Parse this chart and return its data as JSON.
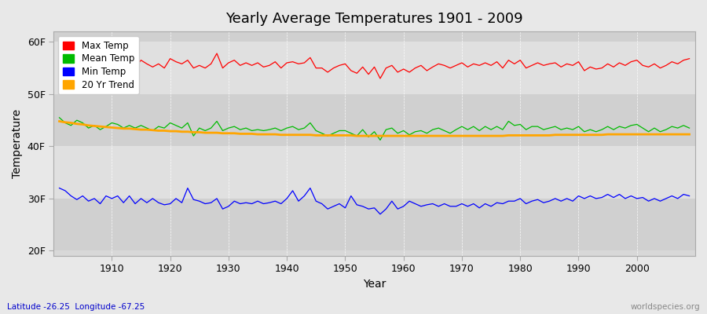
{
  "title": "Yearly Average Temperatures 1901 - 2009",
  "xlabel": "Year",
  "ylabel": "Temperature",
  "years_start": 1901,
  "years_end": 2009,
  "yticks": [
    20,
    30,
    40,
    50,
    60
  ],
  "ytick_labels": [
    "20F",
    "30F",
    "40F",
    "50F",
    "60F"
  ],
  "ylim": [
    19,
    62
  ],
  "xlim": [
    1900,
    2010
  ],
  "legend_labels": [
    "Max Temp",
    "Mean Temp",
    "Min Temp",
    "20 Yr Trend"
  ],
  "legend_colors": [
    "#ff0000",
    "#00bb00",
    "#0000ff",
    "#ffa500"
  ],
  "bg_color": "#e8e8e8",
  "plot_bg_color": "#d8d8d8",
  "grid_color": "#ffffff",
  "subtitle_text": "Latitude -26.25  Longitude -67.25",
  "watermark": "worldspecies.org",
  "max_temps": [
    58.5,
    57.0,
    56.8,
    57.8,
    57.2,
    56.5,
    57.0,
    55.8,
    56.5,
    57.2,
    56.8,
    55.5,
    56.0,
    55.2,
    56.5,
    55.8,
    55.2,
    55.8,
    55.0,
    56.8,
    56.2,
    55.8,
    56.5,
    55.0,
    55.5,
    55.0,
    55.8,
    57.8,
    55.0,
    56.0,
    56.5,
    55.5,
    56.0,
    55.5,
    56.0,
    55.2,
    55.5,
    56.2,
    55.0,
    56.0,
    56.2,
    55.8,
    56.0,
    57.0,
    55.0,
    55.0,
    54.2,
    55.0,
    55.5,
    55.8,
    54.5,
    54.0,
    55.2,
    53.8,
    55.2,
    53.0,
    55.0,
    55.5,
    54.2,
    54.8,
    54.2,
    55.0,
    55.5,
    54.5,
    55.2,
    55.8,
    55.5,
    55.0,
    55.5,
    56.0,
    55.2,
    55.8,
    55.5,
    56.0,
    55.5,
    56.2,
    55.0,
    56.5,
    55.8,
    56.5,
    55.0,
    55.5,
    56.0,
    55.5,
    55.8,
    56.0,
    55.2,
    55.8,
    55.5,
    56.2,
    54.5,
    55.2,
    54.8,
    55.0,
    55.8,
    55.2,
    56.0,
    55.5,
    56.2,
    56.5,
    55.5,
    55.2,
    55.8,
    55.0,
    55.5,
    56.2,
    55.8,
    56.5,
    56.8
  ],
  "mean_temps": [
    45.5,
    44.5,
    44.0,
    45.0,
    44.5,
    43.5,
    44.0,
    43.2,
    43.8,
    44.5,
    44.2,
    43.5,
    44.0,
    43.5,
    44.0,
    43.5,
    43.0,
    43.8,
    43.5,
    44.5,
    44.0,
    43.5,
    44.5,
    42.0,
    43.5,
    43.0,
    43.5,
    44.8,
    43.0,
    43.5,
    43.8,
    43.2,
    43.5,
    43.0,
    43.2,
    43.0,
    43.2,
    43.5,
    43.0,
    43.5,
    43.8,
    43.2,
    43.5,
    44.5,
    43.0,
    42.5,
    42.0,
    42.5,
    43.0,
    43.0,
    42.5,
    42.0,
    43.2,
    41.8,
    42.8,
    41.2,
    43.2,
    43.5,
    42.5,
    43.0,
    42.2,
    42.8,
    43.0,
    42.5,
    43.2,
    43.5,
    43.0,
    42.5,
    43.2,
    43.8,
    43.2,
    43.8,
    43.0,
    43.8,
    43.2,
    43.8,
    43.2,
    44.8,
    44.0,
    44.2,
    43.2,
    43.8,
    43.8,
    43.2,
    43.5,
    43.8,
    43.2,
    43.5,
    43.2,
    43.8,
    42.8,
    43.2,
    42.8,
    43.2,
    43.8,
    43.2,
    43.8,
    43.5,
    44.0,
    44.2,
    43.5,
    42.8,
    43.5,
    42.8,
    43.2,
    43.8,
    43.5,
    44.0,
    43.5
  ],
  "min_temps": [
    32.0,
    31.5,
    30.5,
    29.8,
    30.5,
    29.5,
    30.0,
    29.0,
    30.5,
    30.0,
    30.5,
    29.2,
    30.5,
    29.0,
    30.0,
    29.2,
    30.0,
    29.2,
    28.8,
    29.0,
    30.0,
    29.2,
    32.0,
    29.8,
    29.5,
    29.0,
    29.2,
    30.0,
    28.0,
    28.5,
    29.5,
    29.0,
    29.2,
    29.0,
    29.5,
    29.0,
    29.2,
    29.5,
    29.0,
    30.0,
    31.5,
    29.5,
    30.5,
    32.0,
    29.5,
    29.0,
    28.0,
    28.5,
    29.0,
    28.2,
    30.5,
    28.8,
    28.5,
    28.0,
    28.2,
    27.0,
    28.0,
    29.5,
    28.0,
    28.5,
    29.5,
    29.0,
    28.5,
    28.8,
    29.0,
    28.5,
    29.0,
    28.5,
    28.5,
    29.0,
    28.5,
    29.0,
    28.2,
    29.0,
    28.5,
    29.2,
    29.0,
    29.5,
    29.5,
    30.0,
    29.0,
    29.5,
    29.8,
    29.2,
    29.5,
    30.0,
    29.5,
    30.0,
    29.5,
    30.5,
    30.0,
    30.5,
    30.0,
    30.2,
    30.8,
    30.2,
    30.8,
    30.0,
    30.5,
    30.0,
    30.2,
    29.5,
    30.0,
    29.5,
    30.0,
    30.5,
    30.0,
    30.8,
    30.5
  ],
  "trend_temps": [
    44.8,
    44.6,
    44.5,
    44.3,
    44.2,
    44.0,
    43.9,
    43.8,
    43.7,
    43.6,
    43.5,
    43.4,
    43.4,
    43.3,
    43.2,
    43.2,
    43.1,
    43.0,
    43.0,
    42.9,
    42.9,
    42.8,
    42.8,
    42.7,
    42.7,
    42.6,
    42.6,
    42.6,
    42.5,
    42.5,
    42.5,
    42.4,
    42.4,
    42.4,
    42.3,
    42.3,
    42.3,
    42.3,
    42.2,
    42.2,
    42.2,
    42.2,
    42.2,
    42.2,
    42.1,
    42.1,
    42.1,
    42.1,
    42.1,
    42.1,
    42.1,
    42.0,
    42.0,
    42.0,
    42.0,
    42.0,
    42.0,
    42.0,
    42.0,
    42.0,
    42.0,
    42.0,
    42.0,
    42.0,
    42.0,
    42.0,
    42.0,
    42.0,
    42.0,
    42.0,
    42.0,
    42.0,
    42.0,
    42.0,
    42.0,
    42.0,
    42.0,
    42.1,
    42.1,
    42.1,
    42.1,
    42.1,
    42.1,
    42.1,
    42.1,
    42.2,
    42.2,
    42.2,
    42.2,
    42.2,
    42.2,
    42.2,
    42.2,
    42.2,
    42.3,
    42.3,
    42.3,
    42.3,
    42.3,
    42.3,
    42.3,
    42.3,
    42.3,
    42.3,
    42.3,
    42.3,
    42.3,
    42.3,
    42.3
  ]
}
